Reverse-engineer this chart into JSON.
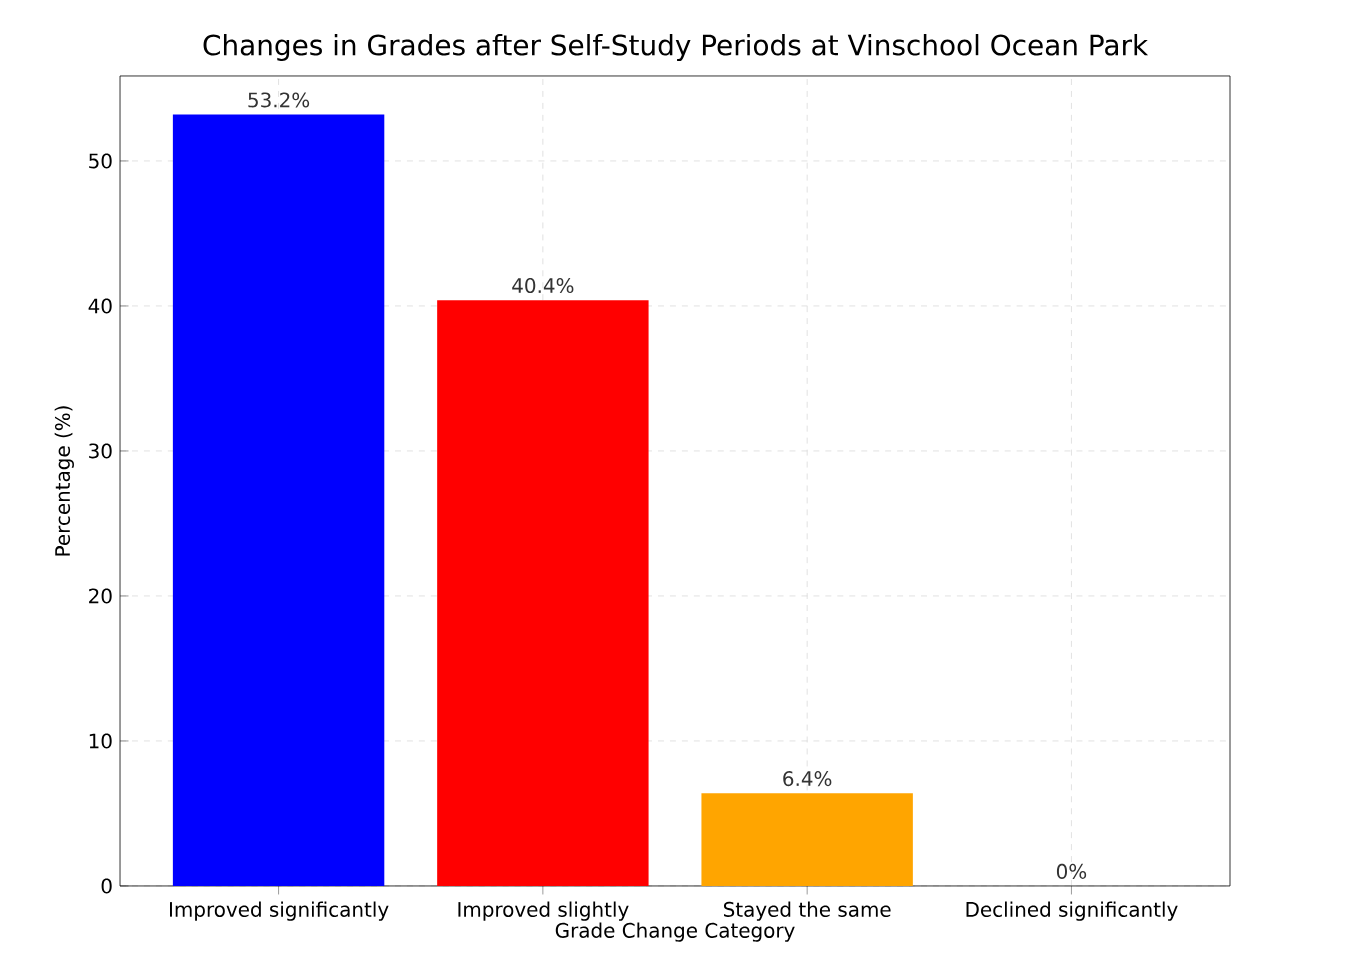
{
  "chart_data": {
    "type": "bar",
    "title": "Changes in Grades after Self-Study Periods at Vinschool Ocean Park",
    "xlabel": "Grade Change Category",
    "ylabel": "Percentage (%)",
    "categories": [
      "Improved significantly",
      "Improved slightly",
      "Stayed the same",
      "Declined significantly"
    ],
    "values": [
      53.2,
      40.4,
      6.4,
      0
    ],
    "colors": [
      "#0000ff",
      "#ff0000",
      "#ffa500",
      "#008000"
    ],
    "value_labels": [
      "53.2%",
      "40.4%",
      "6.4%",
      "0%"
    ],
    "ylim": [
      0,
      55.86
    ],
    "yticks": [
      0,
      10,
      20,
      30,
      40,
      50
    ],
    "grid": true
  }
}
